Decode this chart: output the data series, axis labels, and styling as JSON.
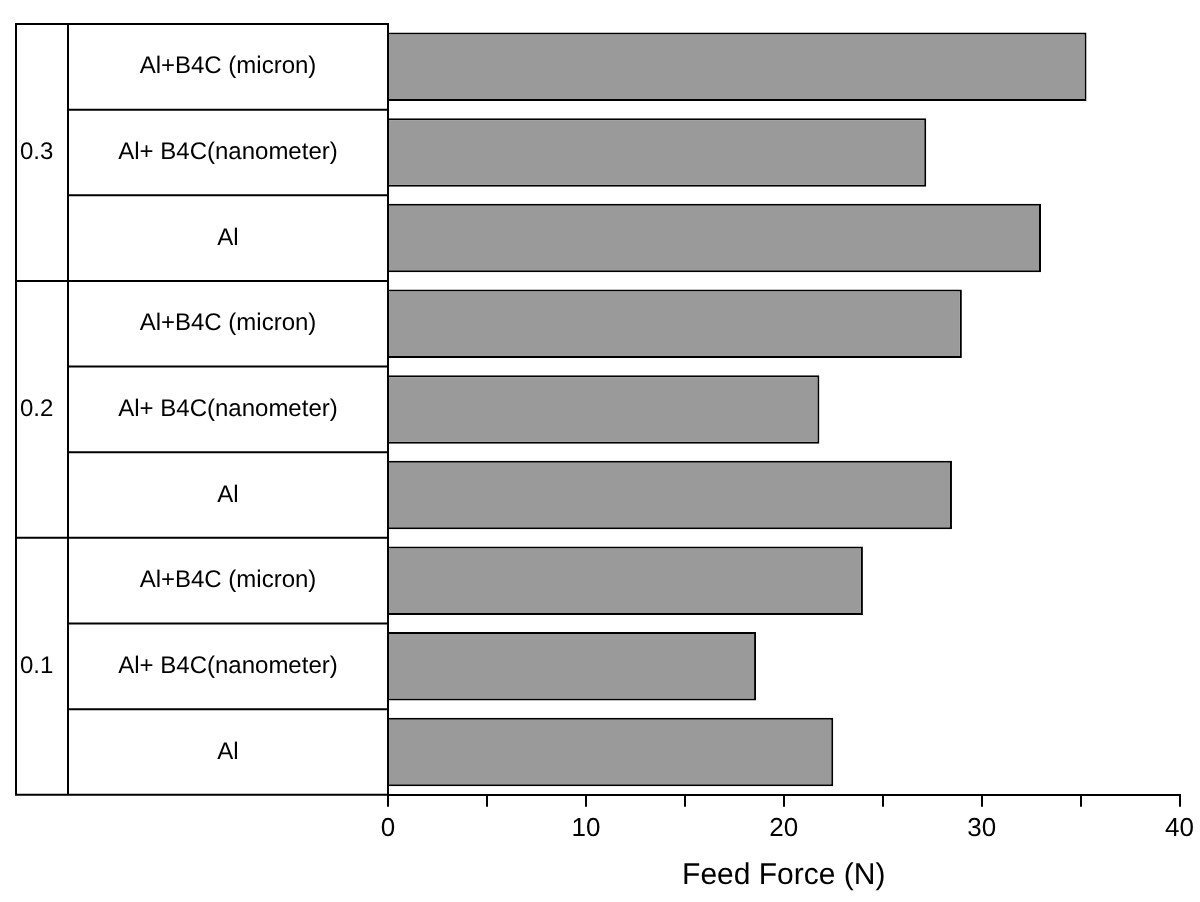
{
  "chart_data": {
    "type": "bar",
    "orientation": "horizontal",
    "xlabel": "Feed Force (N)",
    "categories": [
      "Al+B4C (micron)",
      "Al+ B4C(nanometer)",
      "Al",
      "Al+B4C (micron)",
      "Al+ B4C(nanometer)",
      "Al",
      "Al+B4C (micron)",
      "Al+ B4C(nanometer)",
      "Al"
    ],
    "series": [
      {
        "color": "#9a9a9a",
        "values": [
          35.3,
          27.2,
          33.0,
          29.0,
          21.8,
          28.5,
          24.0,
          18.6,
          22.5
        ]
      }
    ],
    "annotations": [
      "0.3",
      "0.2",
      "0.1"
    ],
    "xlim": [
      0,
      40
    ],
    "xticks": [
      0,
      {
        "value": 5,
        "label": null
      },
      10,
      {
        "value": 15,
        "label": null
      },
      20,
      {
        "value": 25,
        "label": null
      },
      30,
      {
        "value": 35,
        "label": null
      },
      40
    ],
    "grid": false,
    "legend": false
  }
}
